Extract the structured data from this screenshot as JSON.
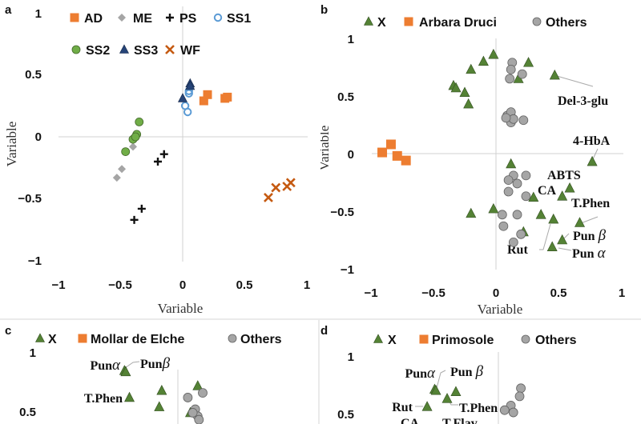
{
  "chart_data": [
    {
      "type": "scatter",
      "panel_label": "a",
      "xlabel": "Variable",
      "ylabel": "Variable",
      "xlim": [
        -1,
        1
      ],
      "ylim": [
        -1,
        1
      ],
      "x_ticks": [
        "−1",
        "−0.5",
        "0",
        "0.5",
        "1"
      ],
      "y_ticks": [
        "1",
        "0.5",
        "0",
        "−0.5",
        "−1"
      ],
      "grid": false,
      "legend_position": "top",
      "series": [
        {
          "name": "AD",
          "marker": "square",
          "color": "#ED7D31",
          "points": [
            [
              0.17,
              0.29
            ],
            [
              0.2,
              0.34
            ],
            [
              0.34,
              0.31
            ],
            [
              0.36,
              0.32
            ]
          ]
        },
        {
          "name": "ME",
          "marker": "diamond",
          "color": "#A5A5A5",
          "points": [
            [
              -0.4,
              -0.08
            ],
            [
              -0.49,
              -0.26
            ],
            [
              -0.53,
              -0.33
            ]
          ]
        },
        {
          "name": "PS",
          "marker": "plus",
          "color": "#111111",
          "points": [
            [
              -0.15,
              -0.14
            ],
            [
              -0.2,
              -0.2
            ],
            [
              -0.33,
              -0.58
            ],
            [
              -0.39,
              -0.67
            ]
          ]
        },
        {
          "name": "SS1",
          "marker": "circle-open",
          "color": "#5B9BD5",
          "points": [
            [
              0.05,
              0.35
            ],
            [
              0.02,
              0.25
            ],
            [
              0.04,
              0.2
            ],
            [
              0.05,
              0.37
            ]
          ]
        },
        {
          "name": "SS2",
          "marker": "circle",
          "color": "#70AD47",
          "points": [
            [
              -0.35,
              0.12
            ],
            [
              -0.37,
              0.02
            ],
            [
              -0.4,
              -0.02
            ],
            [
              -0.46,
              -0.12
            ],
            [
              -0.38,
              0.0
            ]
          ]
        },
        {
          "name": "SS3",
          "marker": "triangle",
          "color": "#264478",
          "points": [
            [
              0.06,
              0.43
            ],
            [
              0.0,
              0.31
            ],
            [
              0.06,
              0.41
            ]
          ]
        },
        {
          "name": "WF",
          "marker": "x",
          "color": "#C55A11",
          "points": [
            [
              0.69,
              -0.49
            ],
            [
              0.75,
              -0.41
            ],
            [
              0.84,
              -0.4
            ],
            [
              0.87,
              -0.37
            ]
          ]
        }
      ]
    },
    {
      "type": "scatter",
      "panel_label": "b",
      "xlabel": "Variable",
      "ylabel": "Variable",
      "xlim": [
        -1,
        1
      ],
      "ylim": [
        -1,
        1
      ],
      "x_ticks": [
        "−1",
        "−0.5",
        "0",
        "0.5",
        "1"
      ],
      "y_ticks": [
        "1",
        "0.5",
        "0",
        "−0.5",
        "−1"
      ],
      "grid": false,
      "legend_position": "top",
      "series": [
        {
          "name": "X",
          "marker": "triangle",
          "color": "#548235",
          "points": [
            [
              -0.02,
              0.86
            ],
            [
              -0.1,
              0.8
            ],
            [
              -0.2,
              0.73
            ],
            [
              -0.34,
              0.59
            ],
            [
              -0.32,
              0.57
            ],
            [
              -0.25,
              0.53
            ],
            [
              -0.22,
              0.43
            ],
            [
              0.26,
              0.79
            ],
            [
              0.18,
              0.65
            ],
            [
              0.47,
              0.68
            ],
            [
              0.77,
              -0.07
            ],
            [
              0.12,
              -0.09
            ],
            [
              0.59,
              -0.3
            ],
            [
              0.3,
              -0.38
            ],
            [
              0.53,
              -0.37
            ],
            [
              -0.2,
              -0.52
            ],
            [
              -0.02,
              -0.48
            ],
            [
              0.36,
              -0.53
            ],
            [
              0.46,
              -0.57
            ],
            [
              0.67,
              -0.6
            ],
            [
              0.53,
              -0.75
            ],
            [
              0.22,
              -0.68
            ],
            [
              0.45,
              -0.81
            ]
          ]
        },
        {
          "name": "Arbara Druci",
          "marker": "square",
          "color": "#ED7D31",
          "points": [
            [
              -0.91,
              0.01
            ],
            [
              -0.84,
              0.08
            ],
            [
              -0.79,
              -0.02
            ],
            [
              -0.72,
              -0.06
            ]
          ]
        },
        {
          "name": "Others",
          "marker": "circle",
          "color": "#A5A5A5",
          "points": [
            [
              0.13,
              0.79
            ],
            [
              0.12,
              0.73
            ],
            [
              0.21,
              0.69
            ],
            [
              0.11,
              0.65
            ],
            [
              0.09,
              0.33
            ],
            [
              0.12,
              0.36
            ],
            [
              0.12,
              0.27
            ],
            [
              0.14,
              0.3
            ],
            [
              0.22,
              0.29
            ],
            [
              0.08,
              0.31
            ],
            [
              0.14,
              -0.19
            ],
            [
              0.24,
              -0.19
            ],
            [
              0.1,
              -0.23
            ],
            [
              0.17,
              -0.26
            ],
            [
              0.1,
              -0.33
            ],
            [
              0.24,
              -0.37
            ],
            [
              0.05,
              -0.53
            ],
            [
              0.17,
              -0.53
            ],
            [
              0.06,
              -0.63
            ],
            [
              0.2,
              -0.7
            ],
            [
              0.14,
              -0.77
            ]
          ]
        }
      ],
      "point_labels": {
        "del3glu": "Del-3-glu",
        "hba": "4-HbA",
        "abts": "ABTS",
        "ca": "CA",
        "tphen": "T.Phen",
        "pun": "Pun",
        "alpha": "α",
        "beta": "β",
        "rut": "Rut"
      }
    },
    {
      "type": "scatter",
      "panel_label": "c",
      "xlim": [
        -1,
        1
      ],
      "y_ticks": [
        "1",
        "0.5"
      ],
      "legend_position": "top",
      "series": [
        {
          "name": "X",
          "marker": "triangle",
          "color": "#548235",
          "points": [
            [
              -0.43,
              0.84
            ],
            [
              -0.42,
              0.83
            ],
            [
              -0.13,
              0.67
            ],
            [
              -0.39,
              0.61
            ],
            [
              -0.15,
              0.53
            ],
            [
              0.16,
              0.71
            ],
            [
              0.1,
              0.48
            ]
          ]
        },
        {
          "name": "Mollar de Elche",
          "marker": "square",
          "color": "#ED7D31",
          "points": []
        },
        {
          "name": "Others",
          "marker": "circle",
          "color": "#A5A5A5",
          "points": [
            [
              0.08,
              0.61
            ],
            [
              0.2,
              0.65
            ],
            [
              0.14,
              0.51
            ],
            [
              0.16,
              0.45
            ],
            [
              0.17,
              0.42
            ],
            [
              0.12,
              0.48
            ]
          ]
        }
      ],
      "point_labels": {
        "pun": "Pun",
        "alpha": "α",
        "beta": "β",
        "tphen": "T.Phen"
      }
    },
    {
      "type": "scatter",
      "panel_label": "d",
      "xlim": [
        -1,
        1
      ],
      "y_ticks": [
        "1",
        "0.5"
      ],
      "legend_position": "top",
      "series": [
        {
          "name": "X",
          "marker": "triangle",
          "color": "#548235",
          "points": [
            [
              -0.51,
              0.71
            ],
            [
              -0.5,
              0.7
            ],
            [
              -0.34,
              0.69
            ],
            [
              -0.41,
              0.63
            ],
            [
              -0.57,
              0.56
            ]
          ]
        },
        {
          "name": "Primosole",
          "marker": "square",
          "color": "#ED7D31",
          "points": []
        },
        {
          "name": "Others",
          "marker": "circle",
          "color": "#A5A5A5",
          "points": [
            [
              0.18,
              0.72
            ],
            [
              0.17,
              0.65
            ],
            [
              0.1,
              0.57
            ],
            [
              0.12,
              0.51
            ],
            [
              0.05,
              0.53
            ]
          ]
        }
      ],
      "point_labels": {
        "pun": "Pun",
        "alpha": "α",
        "beta": "β",
        "tphen": "T.Phen",
        "rut": "Rut",
        "ca": "CA",
        "tflav": "T.Flav"
      }
    }
  ]
}
